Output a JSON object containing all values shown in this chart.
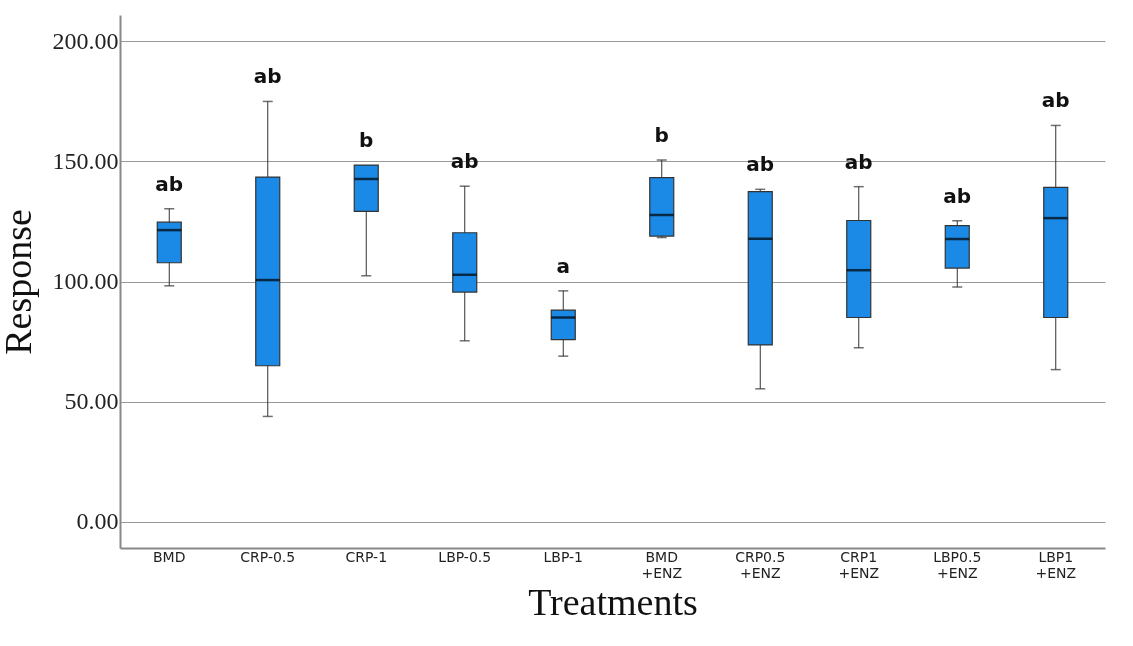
{
  "chart_data": {
    "type": "box",
    "xlabel": "Treatments",
    "ylabel": "Response",
    "categories": [
      "BMD",
      "CRP-0.5",
      "CRP-1",
      "LBP-0.5",
      "LBP-1",
      "BMD +ENZ",
      "CRP0.5 +ENZ",
      "CRP1 +ENZ",
      "LBP0.5 +ENZ",
      "LBP1 +ENZ"
    ],
    "color": "#1a8ae6",
    "boxes": [
      {
        "low": 98.2,
        "q1": 107.8,
        "median": 121.4,
        "q3": 124.7,
        "high": 130.3
      },
      {
        "low": 43.8,
        "q1": 64.9,
        "median": 100.6,
        "q3": 143.5,
        "high": 175
      },
      {
        "low": 102.4,
        "q1": 129.2,
        "median": 142.7,
        "q3": 148.5,
        "high": 148.5
      },
      {
        "low": 75.3,
        "q1": 95.6,
        "median": 102.8,
        "q3": 120.3,
        "high": 139.7
      },
      {
        "low": 68.9,
        "q1": 75.8,
        "median": 85,
        "q3": 88.1,
        "high": 96.1
      },
      {
        "low": 118.3,
        "q1": 118.9,
        "median": 127.7,
        "q3": 143.3,
        "high": 150.6
      },
      {
        "low": 55.3,
        "q1": 73.6,
        "median": 117.8,
        "q3": 137.4,
        "high": 138.4
      },
      {
        "low": 72.4,
        "q1": 85,
        "median": 104.7,
        "q3": 125.4,
        "high": 139.5
      },
      {
        "low": 97.7,
        "q1": 105.6,
        "median": 117.7,
        "q3": 123.3,
        "high": 125.3
      },
      {
        "low": 63.3,
        "q1": 85,
        "median": 126.4,
        "q3": 139.2,
        "high": 165
      }
    ],
    "ylim": [
      -11,
      211
    ],
    "yticks": [
      {
        "value": 0,
        "label": "0.00"
      },
      {
        "value": 50,
        "label": "50.00"
      },
      {
        "value": 100,
        "label": "100.00"
      },
      {
        "value": 150,
        "label": "150.00"
      },
      {
        "value": 200,
        "label": "200.00"
      }
    ],
    "grid": "y",
    "annotations": [
      {
        "text": "ab",
        "x": "BMD",
        "y": 130.3
      },
      {
        "text": "ab",
        "x": "CRP-0.5",
        "y": 175
      },
      {
        "text": "b",
        "x": "CRP-1",
        "y": 148.5
      },
      {
        "text": "ab",
        "x": "LBP-0.5",
        "y": 139.7
      },
      {
        "text": "a",
        "x": "LBP-1",
        "y": 96.1
      },
      {
        "text": "b",
        "x": "BMD +ENZ",
        "y": 150.6
      },
      {
        "text": "ab",
        "x": "CRP0.5 +ENZ",
        "y": 138.4
      },
      {
        "text": "ab",
        "x": "CRP1 +ENZ",
        "y": 139.5
      },
      {
        "text": "ab",
        "x": "LBP0.5 +ENZ",
        "y": 125.3
      },
      {
        "text": "ab",
        "x": "LBP1 +ENZ",
        "y": 165
      }
    ]
  }
}
